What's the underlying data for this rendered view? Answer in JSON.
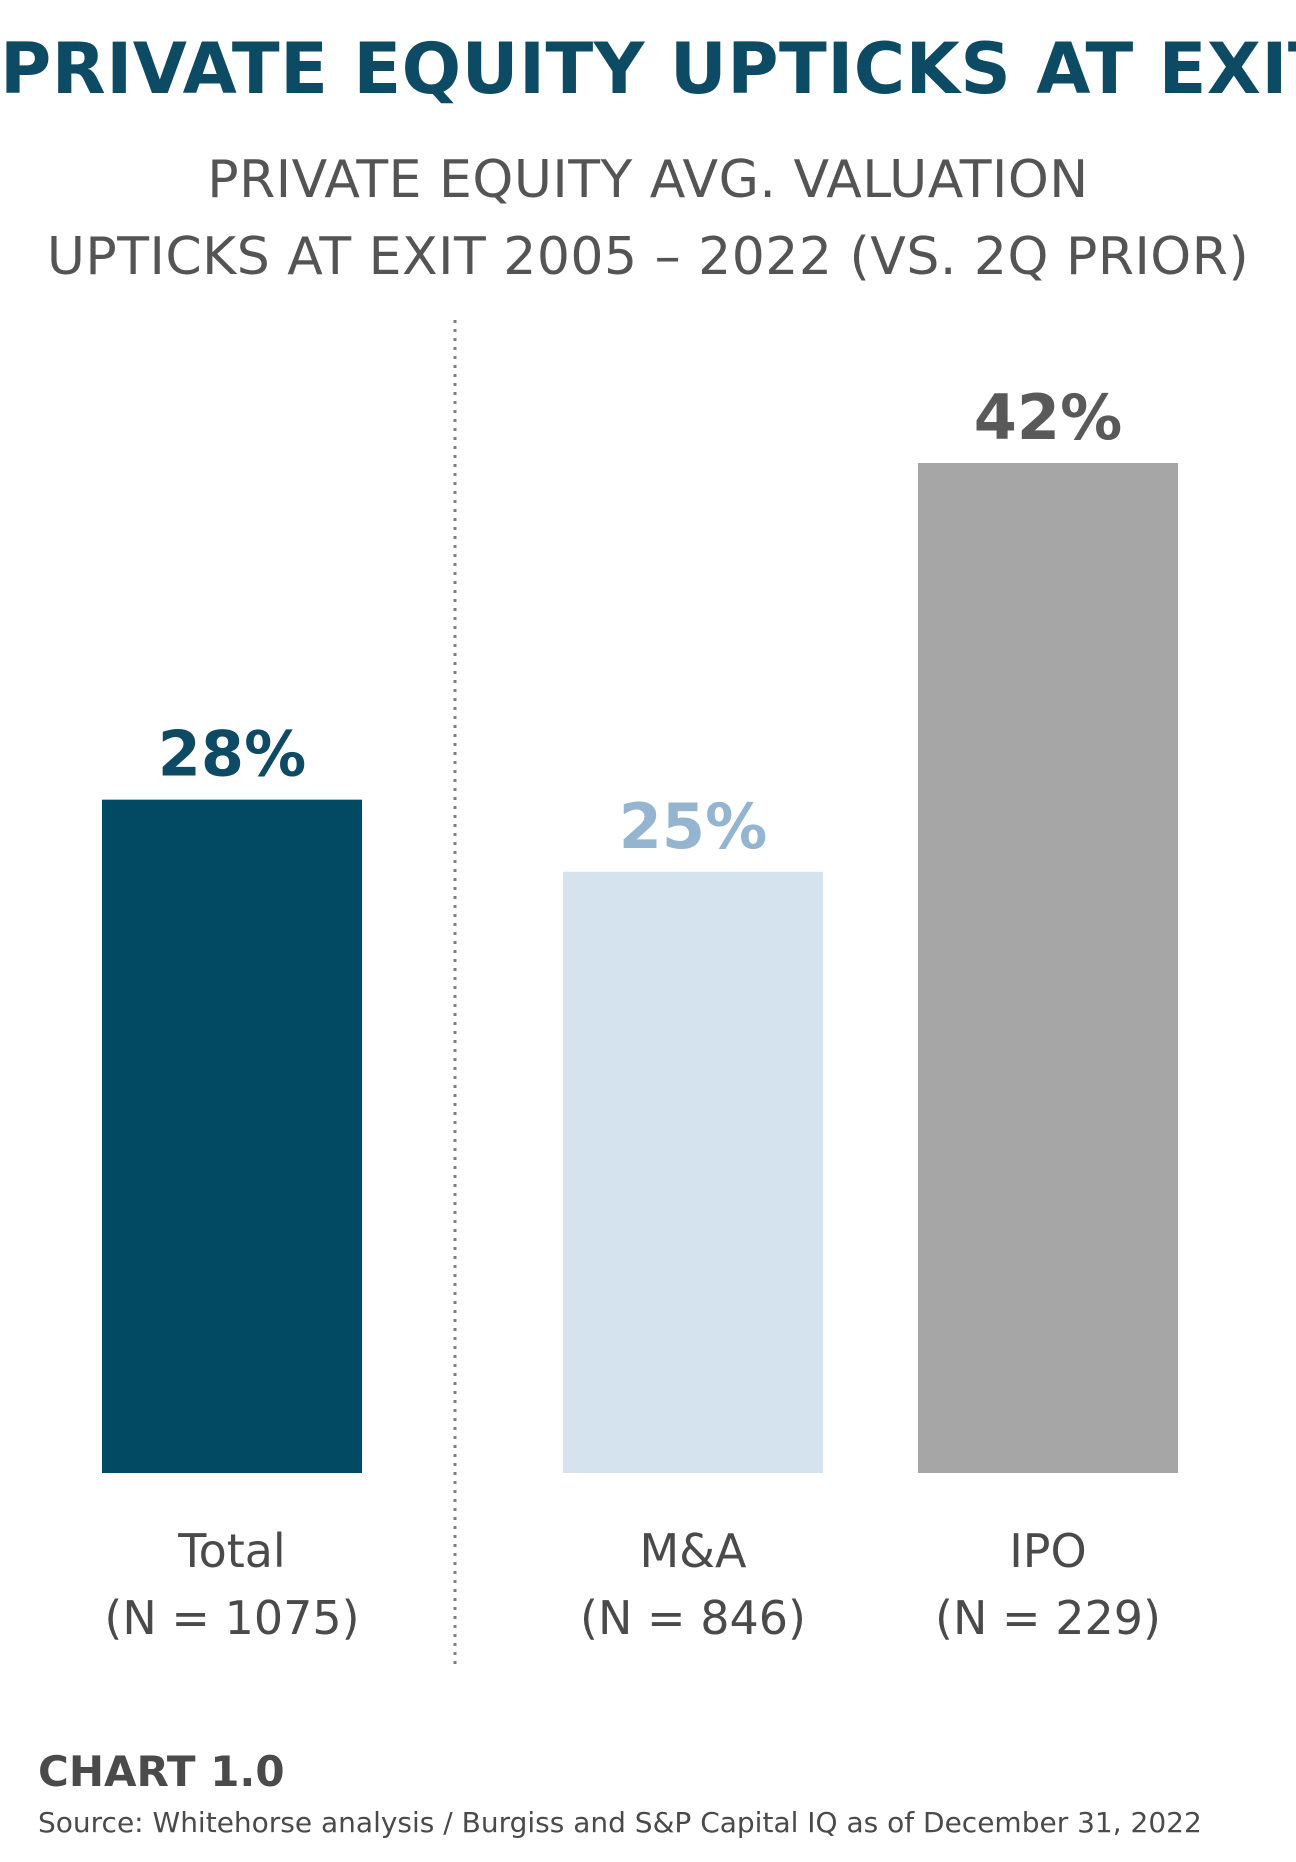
{
  "header": {
    "title": "PRIVATE EQUITY UPTICKS AT EXIT",
    "subtitle_line1": "PRIVATE EQUITY AVG. VALUATION",
    "subtitle_line2": "UPTICKS AT EXIT 2005 – 2022 (VS. 2Q PRIOR)"
  },
  "chart_data": {
    "type": "bar",
    "title": "PRIVATE EQUITY UPTICKS AT EXIT",
    "subtitle": "PRIVATE EQUITY AVG. VALUATION UPTICKS AT EXIT 2005 – 2022 (VS. 2Q PRIOR)",
    "categories": [
      "Total",
      "M&A",
      "IPO"
    ],
    "category_sublabels": [
      "(N = 1075)",
      "(N = 846)",
      "(N = 229)"
    ],
    "values": [
      28,
      25,
      42
    ],
    "value_labels": [
      "28%",
      "25%",
      "42%"
    ],
    "bar_colors": [
      "#024a63",
      "#d4e3ee",
      "#a6a6a6"
    ],
    "value_label_colors": [
      "#0d4a63",
      "#94b4cf",
      "#595959"
    ],
    "ylim": [
      0,
      42
    ],
    "grid": false,
    "divider_after_category": 0
  },
  "footer": {
    "chart_label": "CHART 1.0",
    "source": "Source: Whitehorse analysis / Burgiss and S&P Capital IQ as of December 31, 2022"
  }
}
